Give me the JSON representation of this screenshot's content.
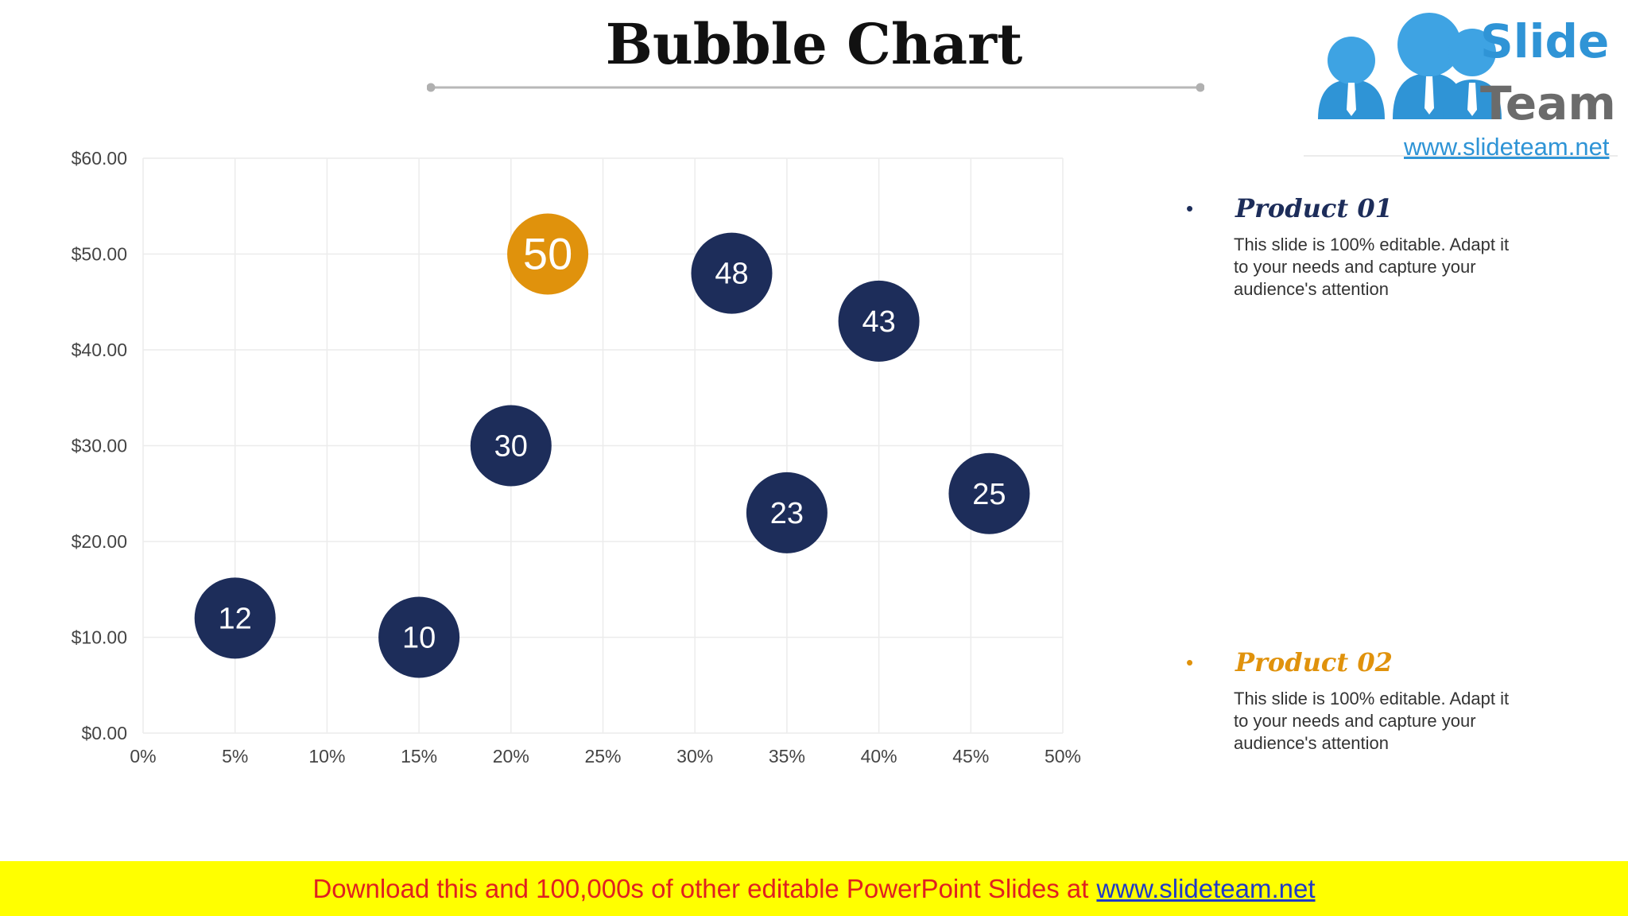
{
  "slide": {
    "title": "Bubble Chart"
  },
  "logo": {
    "word1": "Slide",
    "word2": "Team",
    "url": "www.slideteam.net"
  },
  "legend": [
    {
      "name": "Product 01",
      "color": "#1d2d5a",
      "description": "This slide is 100% editable. Adapt it to your needs and capture your audience's attention"
    },
    {
      "name": "Product 02",
      "color": "#e0920c",
      "description": "This slide is 100% editable. Adapt it to your needs and capture your audience's attention"
    }
  ],
  "banner": {
    "text": "Download this and 100,000s of other editable PowerPoint Slides at",
    "link": "www.slideteam.net"
  },
  "chart_data": {
    "type": "scatter",
    "title": "",
    "xlabel": "",
    "ylabel": "",
    "xlim": [
      0,
      0.5
    ],
    "ylim": [
      0,
      60
    ],
    "x_ticks": [
      "0%",
      "5%",
      "10%",
      "15%",
      "20%",
      "25%",
      "30%",
      "35%",
      "40%",
      "45%",
      "50%"
    ],
    "y_ticks": [
      "$0.00",
      "$10.00",
      "$20.00",
      "$30.00",
      "$40.00",
      "$50.00",
      "$60.00"
    ],
    "grid": true,
    "legend_position": "right",
    "series": [
      {
        "name": "Product 01",
        "color": "#1d2d5a",
        "points": [
          {
            "x": 0.05,
            "y": 12,
            "size": 12,
            "label": "12"
          },
          {
            "x": 0.15,
            "y": 10,
            "size": 10,
            "label": "10"
          },
          {
            "x": 0.2,
            "y": 30,
            "size": 30,
            "label": "30"
          },
          {
            "x": 0.32,
            "y": 48,
            "size": 48,
            "label": "48"
          },
          {
            "x": 0.35,
            "y": 23,
            "size": 23,
            "label": "23"
          },
          {
            "x": 0.4,
            "y": 43,
            "size": 43,
            "label": "43"
          },
          {
            "x": 0.46,
            "y": 25,
            "size": 25,
            "label": "25"
          }
        ]
      },
      {
        "name": "Product 02",
        "color": "#e0920c",
        "points": [
          {
            "x": 0.22,
            "y": 50,
            "size": 50,
            "label": "50"
          }
        ]
      }
    ]
  }
}
